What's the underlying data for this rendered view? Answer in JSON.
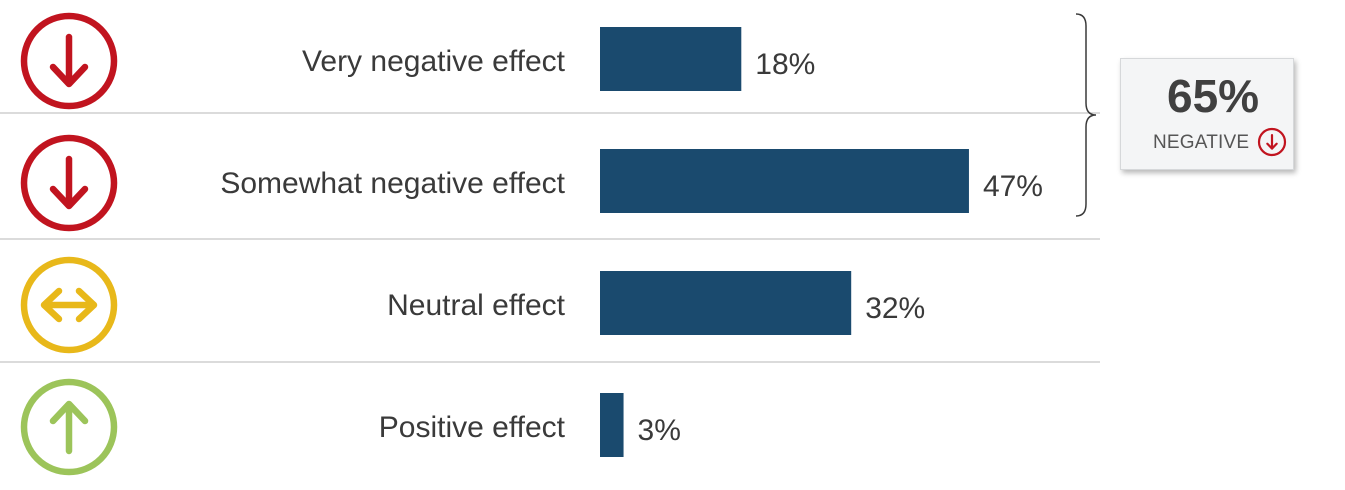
{
  "chart_data": {
    "type": "bar",
    "orientation": "horizontal",
    "categories": [
      "Very negative effect",
      "Somewhat negative effect",
      "Neutral effect",
      "Positive effect"
    ],
    "values": [
      18,
      47,
      32,
      3
    ],
    "value_labels": [
      "18%",
      "47%",
      "32%",
      "3%"
    ],
    "unit": "%",
    "xlim": [
      0,
      100
    ],
    "grid": false,
    "icons": [
      "arrow-down-circle-icon",
      "arrow-down-circle-icon",
      "arrow-left-right-circle-icon",
      "arrow-up-circle-icon"
    ],
    "icon_colors": [
      "#c1141f",
      "#c1141f",
      "#e8b81a",
      "#9cc45a"
    ],
    "bar_color": "#1a4a6e"
  },
  "summary": {
    "value": "65%",
    "label": "NEGATIVE",
    "icon": "arrow-down-circle-icon",
    "icon_color": "#c1141f",
    "bracket_covers": [
      "Very negative effect",
      "Somewhat negative effect"
    ]
  }
}
